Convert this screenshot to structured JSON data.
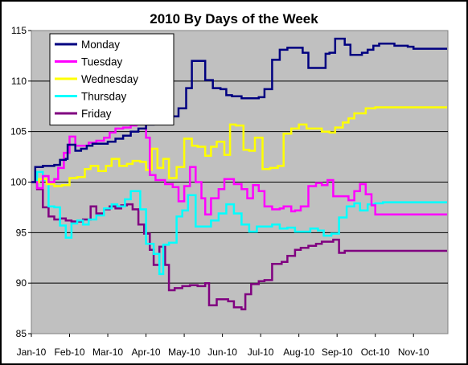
{
  "chart_data": {
    "type": "line",
    "title": "2010 By Days of the Week",
    "xlabel": "",
    "ylabel": "",
    "ylim": [
      85,
      115
    ],
    "yticks": [
      85,
      90,
      95,
      100,
      105,
      110,
      115
    ],
    "xlim": [
      0,
      10.9
    ],
    "x_tick_values": [
      0,
      1,
      2,
      3,
      4,
      5,
      6,
      7,
      8,
      9,
      10
    ],
    "x_tick_labels": [
      "Jan-10",
      "Feb-10",
      "Mar-10",
      "Apr-10",
      "May-10",
      "Jun-10",
      "Jul-10",
      "Aug-10",
      "Sep-10",
      "Oct-10",
      "Nov-10"
    ],
    "grid": "horizontal",
    "legend_position": "top-left",
    "plot_background": "#C0C0C0",
    "series": [
      {
        "name": "Monday",
        "color": "#000080",
        "points": [
          [
            0,
            100
          ],
          [
            0.1,
            101.5
          ],
          [
            0.3,
            101.6
          ],
          [
            0.6,
            101.7
          ],
          [
            0.75,
            102.2
          ],
          [
            0.9,
            102.3
          ],
          [
            0.95,
            103.7
          ],
          [
            1.15,
            103.1
          ],
          [
            1.3,
            103.3
          ],
          [
            1.45,
            103.6
          ],
          [
            1.6,
            103.8
          ],
          [
            1.8,
            103.8
          ],
          [
            2.0,
            104
          ],
          [
            2.2,
            104.3
          ],
          [
            2.4,
            104.6
          ],
          [
            2.6,
            105
          ],
          [
            2.8,
            105.3
          ],
          [
            3.0,
            105.7
          ],
          [
            3.2,
            105.9
          ],
          [
            3.4,
            106.1
          ],
          [
            3.55,
            106.5
          ],
          [
            3.7,
            106.5
          ],
          [
            3.85,
            107.3
          ],
          [
            4.05,
            109.3
          ],
          [
            4.2,
            112
          ],
          [
            4.45,
            112
          ],
          [
            4.55,
            110.1
          ],
          [
            4.75,
            109.3
          ],
          [
            4.95,
            109.2
          ],
          [
            5.1,
            108.6
          ],
          [
            5.25,
            108.5
          ],
          [
            5.5,
            108.3
          ],
          [
            5.75,
            108.3
          ],
          [
            5.95,
            108.4
          ],
          [
            6.1,
            109.2
          ],
          [
            6.3,
            112.1
          ],
          [
            6.5,
            113.1
          ],
          [
            6.7,
            113.3
          ],
          [
            6.9,
            113.3
          ],
          [
            7.1,
            112.8
          ],
          [
            7.25,
            111.3
          ],
          [
            7.5,
            111.3
          ],
          [
            7.7,
            112.7
          ],
          [
            7.8,
            112.8
          ],
          [
            7.95,
            114.2
          ],
          [
            8.1,
            114.2
          ],
          [
            8.2,
            113.6
          ],
          [
            8.35,
            112.6
          ],
          [
            8.5,
            112.6
          ],
          [
            8.65,
            112.8
          ],
          [
            8.8,
            113.1
          ],
          [
            8.95,
            113.5
          ],
          [
            9.1,
            113.7
          ],
          [
            9.3,
            113.7
          ],
          [
            9.5,
            113.5
          ],
          [
            9.7,
            113.5
          ],
          [
            9.85,
            113.4
          ],
          [
            10.0,
            113.2
          ]
        ]
      },
      {
        "name": "Tuesday",
        "color": "#FF00FF",
        "points": [
          [
            0,
            100
          ],
          [
            0.15,
            99.4
          ],
          [
            0.3,
            100.6
          ],
          [
            0.45,
            100
          ],
          [
            0.6,
            100.3
          ],
          [
            0.7,
            101.4
          ],
          [
            0.85,
            102.9
          ],
          [
            1.0,
            104.5
          ],
          [
            1.15,
            103.6
          ],
          [
            1.3,
            103.6
          ],
          [
            1.5,
            103.9
          ],
          [
            1.7,
            104.1
          ],
          [
            1.9,
            104.4
          ],
          [
            2.05,
            104.9
          ],
          [
            2.2,
            105.3
          ],
          [
            2.4,
            105.4
          ],
          [
            2.6,
            105.6
          ],
          [
            2.75,
            106.4
          ],
          [
            2.85,
            106.3
          ],
          [
            2.95,
            106.5
          ],
          [
            3.0,
            104.4
          ],
          [
            3.1,
            100.7
          ],
          [
            3.25,
            100.2
          ],
          [
            3.5,
            99.8
          ],
          [
            3.7,
            99.5
          ],
          [
            3.85,
            98.1
          ],
          [
            4.0,
            99.6
          ],
          [
            4.15,
            101.5
          ],
          [
            4.3,
            100
          ],
          [
            4.45,
            98.4
          ],
          [
            4.55,
            96.8
          ],
          [
            4.7,
            98.4
          ],
          [
            4.9,
            99.3
          ],
          [
            5.05,
            100.3
          ],
          [
            5.3,
            99.8
          ],
          [
            5.5,
            99.3
          ],
          [
            5.65,
            98.4
          ],
          [
            5.8,
            99.7
          ],
          [
            5.95,
            99.1
          ],
          [
            6.1,
            97.6
          ],
          [
            6.3,
            97.3
          ],
          [
            6.5,
            97.4
          ],
          [
            6.6,
            97.6
          ],
          [
            6.8,
            97.1
          ],
          [
            6.9,
            97.2
          ],
          [
            7.05,
            97.6
          ],
          [
            7.25,
            99.6
          ],
          [
            7.45,
            99.9
          ],
          [
            7.6,
            99.7
          ],
          [
            7.75,
            100.2
          ],
          [
            7.9,
            98.6
          ],
          [
            8.1,
            98.6
          ],
          [
            8.3,
            98.2
          ],
          [
            8.45,
            99.1
          ],
          [
            8.6,
            99.8
          ],
          [
            8.75,
            98.8
          ],
          [
            8.9,
            97.7
          ],
          [
            9.0,
            96.8
          ],
          [
            9.2,
            96.8
          ]
        ]
      },
      {
        "name": "Wednesday",
        "color": "#FFFF00",
        "points": [
          [
            0,
            100
          ],
          [
            0.2,
            100.3
          ],
          [
            0.4,
            99.8
          ],
          [
            0.6,
            99.6
          ],
          [
            0.8,
            99.7
          ],
          [
            1.0,
            100.4
          ],
          [
            1.2,
            100.5
          ],
          [
            1.4,
            101.3
          ],
          [
            1.55,
            101.6
          ],
          [
            1.75,
            101.1
          ],
          [
            1.95,
            101.6
          ],
          [
            2.1,
            102.3
          ],
          [
            2.3,
            101.6
          ],
          [
            2.5,
            101.8
          ],
          [
            2.65,
            102.1
          ],
          [
            2.85,
            102
          ],
          [
            3.0,
            101.2
          ],
          [
            3.15,
            103.3
          ],
          [
            3.3,
            101.4
          ],
          [
            3.45,
            102.3
          ],
          [
            3.6,
            100.4
          ],
          [
            3.8,
            101.5
          ],
          [
            4.0,
            104.3
          ],
          [
            4.2,
            103.6
          ],
          [
            4.35,
            103.5
          ],
          [
            4.55,
            102.6
          ],
          [
            4.7,
            103.5
          ],
          [
            4.85,
            104
          ],
          [
            5.05,
            102.7
          ],
          [
            5.2,
            105.7
          ],
          [
            5.35,
            105.6
          ],
          [
            5.55,
            103.2
          ],
          [
            5.7,
            103.1
          ],
          [
            5.85,
            104.4
          ],
          [
            6.05,
            101.3
          ],
          [
            6.25,
            101.4
          ],
          [
            6.45,
            101.6
          ],
          [
            6.6,
            104.8
          ],
          [
            6.8,
            105.3
          ],
          [
            7.0,
            105.7
          ],
          [
            7.2,
            105.3
          ],
          [
            7.4,
            105.3
          ],
          [
            7.6,
            105
          ],
          [
            7.8,
            104.9
          ],
          [
            7.95,
            105.4
          ],
          [
            8.15,
            105.9
          ],
          [
            8.3,
            106.3
          ],
          [
            8.45,
            106.8
          ],
          [
            8.6,
            106.8
          ],
          [
            8.75,
            107.3
          ],
          [
            9.0,
            107.4
          ],
          [
            9.2,
            107.4
          ]
        ]
      },
      {
        "name": "Thursday",
        "color": "#00FFFF",
        "points": [
          [
            0,
            100
          ],
          [
            0.15,
            101
          ],
          [
            0.3,
            100.2
          ],
          [
            0.45,
            97.6
          ],
          [
            0.6,
            97.5
          ],
          [
            0.75,
            95.7
          ],
          [
            0.9,
            94.5
          ],
          [
            1.05,
            95.9
          ],
          [
            1.2,
            96.2
          ],
          [
            1.35,
            95.8
          ],
          [
            1.5,
            96.3
          ],
          [
            1.7,
            96.7
          ],
          [
            1.9,
            97.4
          ],
          [
            2.1,
            97.8
          ],
          [
            2.25,
            97.6
          ],
          [
            2.45,
            98.3
          ],
          [
            2.6,
            99.1
          ],
          [
            2.75,
            99.1
          ],
          [
            2.85,
            97.3
          ],
          [
            3.0,
            93.9
          ],
          [
            3.2,
            92.9
          ],
          [
            3.35,
            90.9
          ],
          [
            3.45,
            93.8
          ],
          [
            3.6,
            94
          ],
          [
            3.8,
            96.6
          ],
          [
            3.95,
            97.2
          ],
          [
            4.1,
            98.7
          ],
          [
            4.3,
            95.6
          ],
          [
            4.5,
            95.6
          ],
          [
            4.7,
            96.2
          ],
          [
            4.9,
            96.9
          ],
          [
            5.1,
            97.8
          ],
          [
            5.3,
            96.9
          ],
          [
            5.5,
            95.8
          ],
          [
            5.7,
            95.1
          ],
          [
            5.9,
            95.6
          ],
          [
            6.1,
            95.6
          ],
          [
            6.3,
            95.8
          ],
          [
            6.5,
            95.4
          ],
          [
            6.7,
            95.5
          ],
          [
            6.9,
            95.1
          ],
          [
            7.1,
            95.1
          ],
          [
            7.3,
            95.4
          ],
          [
            7.5,
            95.2
          ],
          [
            7.65,
            94.7
          ],
          [
            7.85,
            94.9
          ],
          [
            8.05,
            96.5
          ],
          [
            8.25,
            97.6
          ],
          [
            8.45,
            97.9
          ],
          [
            8.6,
            97.2
          ],
          [
            8.8,
            97.8
          ],
          [
            9.0,
            97.9
          ],
          [
            9.2,
            98
          ]
        ]
      },
      {
        "name": "Friday",
        "color": "#800080",
        "points": [
          [
            0,
            100
          ],
          [
            0.15,
            99.3
          ],
          [
            0.3,
            97.5
          ],
          [
            0.45,
            96.6
          ],
          [
            0.6,
            96.3
          ],
          [
            0.75,
            96.4
          ],
          [
            0.9,
            96.2
          ],
          [
            1.05,
            96.1
          ],
          [
            1.2,
            96.1
          ],
          [
            1.35,
            96.3
          ],
          [
            1.55,
            97.6
          ],
          [
            1.7,
            96.9
          ],
          [
            1.9,
            97.3
          ],
          [
            2.05,
            97.6
          ],
          [
            2.2,
            97.4
          ],
          [
            2.35,
            97.7
          ],
          [
            2.5,
            97.8
          ],
          [
            2.65,
            97.3
          ],
          [
            2.8,
            95.8
          ],
          [
            2.95,
            94.9
          ],
          [
            3.1,
            93.3
          ],
          [
            3.2,
            91.8
          ],
          [
            3.35,
            93.6
          ],
          [
            3.5,
            91.8
          ],
          [
            3.6,
            89.3
          ],
          [
            3.75,
            89.5
          ],
          [
            3.95,
            89.7
          ],
          [
            4.15,
            89.8
          ],
          [
            4.35,
            89.7
          ],
          [
            4.55,
            90
          ],
          [
            4.65,
            87.8
          ],
          [
            4.85,
            88.4
          ],
          [
            5.0,
            88.4
          ],
          [
            5.15,
            88.2
          ],
          [
            5.3,
            87.6
          ],
          [
            5.5,
            87.4
          ],
          [
            5.6,
            88.9
          ],
          [
            5.75,
            89.9
          ],
          [
            5.95,
            90.2
          ],
          [
            6.1,
            90.3
          ],
          [
            6.3,
            91.9
          ],
          [
            6.45,
            91.9
          ],
          [
            6.55,
            92.1
          ],
          [
            6.7,
            92.7
          ],
          [
            6.9,
            93.3
          ],
          [
            7.05,
            93.5
          ],
          [
            7.25,
            93.7
          ],
          [
            7.45,
            93.9
          ],
          [
            7.6,
            94.1
          ],
          [
            7.75,
            94.1
          ],
          [
            7.9,
            94.3
          ],
          [
            8.05,
            93
          ],
          [
            8.2,
            93.2
          ]
        ]
      }
    ]
  }
}
